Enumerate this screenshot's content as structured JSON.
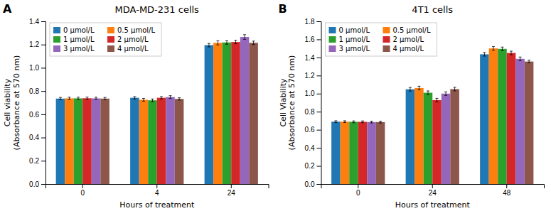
{
  "chart_data": [
    {
      "type": "bar",
      "title": "MDA-MD-231 cells",
      "annotation": "A",
      "xlabel": "Hours of treatment",
      "ylabel": "Cell viability\n(Absorbance at 570 nm)",
      "categories": [
        "0",
        "4",
        "24"
      ],
      "ylim": [
        0,
        1.4
      ],
      "yticks": [
        {
          "value": 0,
          "label": "0.0"
        },
        0.2,
        0.4,
        0.6,
        0.8,
        {
          "value": 1.0,
          "label": "1.0"
        },
        1.2,
        1.4
      ],
      "grid": false,
      "legend": "upper left",
      "series": [
        {
          "name": "0 μmol/L",
          "values": [
            0.735,
            0.742,
            1.195
          ],
          "err": [
            0.01,
            0.01,
            0.015
          ]
        },
        {
          "name": "0.5 μmol/L",
          "values": [
            0.737,
            0.725,
            1.215
          ],
          "err": [
            0.01,
            0.012,
            0.018
          ]
        },
        {
          "name": "1 μmol/L",
          "values": [
            0.737,
            0.72,
            1.218
          ],
          "err": [
            0.01,
            0.012,
            0.015
          ]
        },
        {
          "name": "2 μmol/L",
          "values": [
            0.738,
            0.742,
            1.222
          ],
          "err": [
            0.01,
            0.01,
            0.015
          ]
        },
        {
          "name": "3 μmol/L",
          "values": [
            0.737,
            0.748,
            1.265
          ],
          "err": [
            0.01,
            0.012,
            0.02
          ]
        },
        {
          "name": "4 μmol/L",
          "values": [
            0.735,
            0.732,
            1.215
          ],
          "err": [
            0.01,
            0.01,
            0.015
          ]
        }
      ]
    },
    {
      "type": "bar",
      "title": "4T1 cells",
      "annotation": "B",
      "xlabel": "Hours of treatment",
      "ylabel": "Cell Viability\n(Absorbance at 570 nm)",
      "categories": [
        "0",
        "24",
        "48"
      ],
      "ylim": [
        0,
        1.8
      ],
      "yticks": [
        {
          "value": 0,
          "label": "0.0"
        },
        0.2,
        0.4,
        0.6,
        0.8,
        {
          "value": 1.0,
          "label": "1.0"
        },
        1.2,
        1.4,
        1.6,
        1.8
      ],
      "grid": false,
      "legend": "upper left",
      "series": [
        {
          "name": "0 μmol/L",
          "values": [
            0.69,
            1.048,
            1.435
          ],
          "err": [
            0.01,
            0.02,
            0.02
          ]
        },
        {
          "name": "0.5 μmol/L",
          "values": [
            0.69,
            1.062,
            1.5
          ],
          "err": [
            0.01,
            0.02,
            0.02
          ]
        },
        {
          "name": "1 μmol/L",
          "values": [
            0.688,
            1.01,
            1.495
          ],
          "err": [
            0.01,
            0.02,
            0.02
          ]
        },
        {
          "name": "2 μmol/L",
          "values": [
            0.688,
            0.928,
            1.45
          ],
          "err": [
            0.01,
            0.02,
            0.02
          ]
        },
        {
          "name": "3 μmol/L",
          "values": [
            0.685,
            1.0,
            1.385
          ],
          "err": [
            0.01,
            0.02,
            0.02
          ]
        },
        {
          "name": "4 μmol/L",
          "values": [
            0.685,
            1.05,
            1.355
          ],
          "err": [
            0.01,
            0.02,
            0.015
          ]
        }
      ]
    }
  ]
}
